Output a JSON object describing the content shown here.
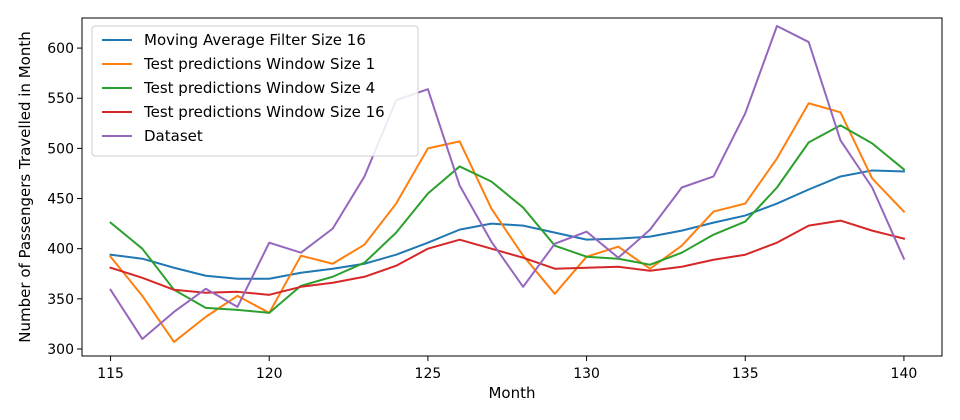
{
  "chart_data": {
    "type": "line",
    "title": "",
    "xlabel": "Month",
    "ylabel": "Number of Passengers Travelled in Month",
    "xlim": [
      114.1,
      141.2
    ],
    "ylim": [
      293,
      630
    ],
    "xticks": [
      115,
      120,
      125,
      130,
      135,
      140
    ],
    "yticks": [
      300,
      350,
      400,
      450,
      500,
      550,
      600
    ],
    "grid": false,
    "legend_position": "top-left",
    "x": [
      115,
      116,
      117,
      118,
      119,
      120,
      121,
      122,
      123,
      124,
      125,
      126,
      127,
      128,
      129,
      130,
      131,
      132,
      133,
      134,
      135,
      136,
      137,
      138,
      139,
      140
    ],
    "series": [
      {
        "name": "Moving Average Filter Size 16",
        "color": "#1f77b4",
        "values": [
          394,
          390,
          381,
          373,
          370,
          370,
          376,
          380,
          385,
          394,
          406,
          419,
          425,
          423,
          416,
          409,
          410,
          412,
          418,
          426,
          433,
          445,
          459,
          472,
          478,
          477
        ]
      },
      {
        "name": "Test predictions Window Size 1",
        "color": "#ff7f0e",
        "values": [
          392,
          353,
          307,
          332,
          353,
          336,
          393,
          385,
          404,
          445,
          500,
          507,
          440,
          393,
          355,
          392,
          402,
          380,
          403,
          437,
          445,
          490,
          545,
          536,
          470,
          437
        ]
      },
      {
        "name": "Test predictions Window Size 4",
        "color": "#2ca02c",
        "values": [
          426,
          400,
          359,
          341,
          339,
          336,
          363,
          372,
          386,
          416,
          455,
          482,
          467,
          441,
          403,
          392,
          390,
          384,
          396,
          414,
          427,
          461,
          506,
          523,
          505,
          479
        ]
      },
      {
        "name": "Test predictions Window Size 16",
        "color": "#d62728",
        "values": [
          381,
          371,
          359,
          356,
          357,
          354,
          362,
          366,
          372,
          383,
          400,
          409,
          400,
          391,
          380,
          381,
          382,
          378,
          382,
          389,
          394,
          406,
          423,
          428,
          418,
          410
        ]
      },
      {
        "name": "Dataset",
        "color": "#9467bd",
        "values": [
          359,
          310,
          337,
          360,
          342,
          406,
          396,
          420,
          472,
          548,
          559,
          463,
          407,
          362,
          405,
          417,
          391,
          419,
          461,
          472,
          535,
          622,
          606,
          508,
          461,
          390
        ]
      }
    ]
  }
}
